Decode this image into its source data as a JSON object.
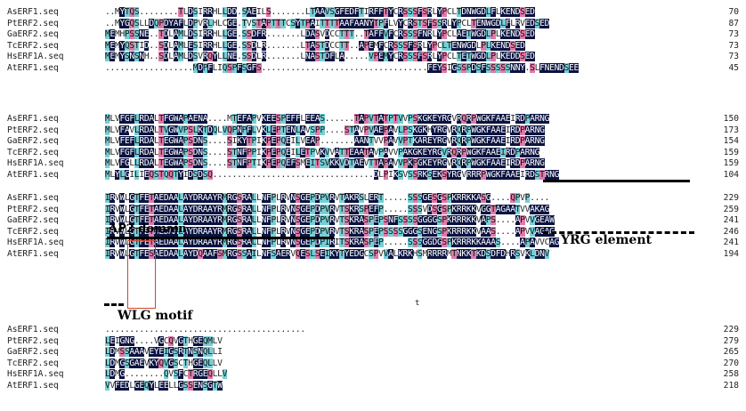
{
  "colors": {
    "identical": "#0b1340",
    "high_similarity": "#e07aa8",
    "low_similarity": "#76cfd6",
    "motif_box": "#d2452f"
  },
  "annotations": {
    "ap2_domain": "AP2 domain",
    "yrg_element": "YRG element",
    "wlg_motif": "WLG motif",
    "t_mark": "t"
  },
  "blocks": [
    {
      "rows": [
        {
          "name": "AsERF1.seq",
          "seq": "..MYTQS........TLDSIRRHLLDD.SAEILS.......LTAAVSGFEDFTIRFFTYCRSSSFSRLYPCLTDNWGDLFLKENDSED",
          "end": "70"
        },
        {
          "name": "PtERF2.seq",
          "seq": "..MYGQSLLDQPDYAFLDPVRLHLCGE.TVSTAPTTTCSYTPAITTTTAAFAANYTPFLVYCRSTSFSSRLYPCLTENWGDLFLRVEDSED",
          "end": "87"
        },
        {
          "name": "GaERF2.seq",
          "seq": "MEMHPSSNE..TDLAMLDSIRRHLLGE.SSDFR.......LDASVDCCTTT..TAFFVFCRSSSFNRLYPCLAETWGDLPLKENDSED",
          "end": "73"
        },
        {
          "name": "TcERF2.seq",
          "seq": "MEMYQSTID..SDLAMLESIRRHLLGE.SSDLR.......LTASTDCCTT..APEMFCRSSSFSRLYPCLTENWGDLPLKENDSED",
          "end": "73"
        },
        {
          "name": "HsERF1A.seq",
          "seq": "MEMYSNSNH..SDLAMLDSVRQYLLNE.SSDLR.......LNASTDFLA.....VPEMYCRSSSFSRLYPCLTETWGDLPLKEDDSED",
          "end": "73"
        },
        {
          "name": "AtERF1.seq",
          "seq": "..................MDPFLIQSPFSGFS..................................FEYSIGSSPDSFSSSSSNNY.SLFNENDSEE",
          "end": "45"
        }
      ]
    },
    {
      "rows": [
        {
          "name": "AsERF1.seq",
          "seq": "MLVFGFLRDALTFGWAPAENA....MTEFAPVKEESPEFFLEEAS......TAPVTATPTVVPSKGKEYRGVRQRPWGKFAAEIRDPARNG",
          "end": "150"
        },
        {
          "name": "PtERF2.seq",
          "seq": "MLVFAVLRDALTVGWVPSLKTDQLVQPNPFLVKLEPTENLAVSPP....STAVPVAEPAVLPSKGKHYRGVRQRPWGKFAAEIRDPARNG",
          "end": "173"
        },
        {
          "name": "GaERF2.seq",
          "seq": "MLVFEFLRDALTEGWAPSDNS....SIKYTPIKPEPQEILVEAP.......AANTVVPAVVPTKAREYRGVRQRPWGKFAAEIRDPARNG",
          "end": "154"
        },
        {
          "name": "TcERF2.seq",
          "seq": "MLVFGFLRDALTEGWAPSDNS....STNFPPIKPEPQEILETPVKVVATTEAATAVPAVVPAKGKEYRGVRQRPWGKFAAEIRDPARNG",
          "end": "159"
        },
        {
          "name": "HsERF1A.seq",
          "seq": "MLVFGLLRDALTEGWAPSDNS....STNFPTIKPEPQEFSMEITSVKKVDTAEVTTAPAVVPKPGKEYRGVRQRPWGKFAAEIRDPARNG",
          "end": "159"
        },
        {
          "name": "AtERF1.seq",
          "seq": "MLYLGILIEQSTQQTYIDSDSQ.................................DLPIKSVSSRKSEKSYRGVRRRPWGKFAAEIRDSTRNG",
          "end": "104"
        }
      ]
    },
    {
      "rows": [
        {
          "name": "AsERF1.seq",
          "seq": "IRVWLGTFETAEDAALAYDRAAYRMRGSRALLNFPLRVNSGEPDPVRVTAKRSLERT.....SSSGESGSPKRRKKASG....QPVP....",
          "end": "229"
        },
        {
          "name": "PtERF2.seq",
          "seq": "IRVWLGTFETAEDAALAYDRAAYRMRGSRALLNFPLRVNSGEPDPVRVTSKRSPEFP.....SSSVDSGSPKRRKKVGGTAGAATVVAKAG",
          "end": "259"
        },
        {
          "name": "GaERF2.seq",
          "seq": "IRVWLGTFETAEDAALAYDRAAYRMRGSRALLNFPLRVNSGEPDPVRVTSKRASPEPSNFSSSSGGGGSPKRRRKKVAPS....APVVGEAW",
          "end": "241"
        },
        {
          "name": "TcERF2.seq",
          "seq": "IRVWLGTFETAEDAALAYDRAAYRMRGSRALLNFPLRVNSGEPDPVRVTSKRASPEPSSSSGGGSENGSPKRRRKKVAAS....APVVAGAG",
          "end": "246"
        },
        {
          "name": "HsERF1A.seq",
          "seq": "IRVWLGTFETAEDAALAYDRAAYRMRGSRALLNFPLRVNSGEPDPIRITSKRASPEP.....SSSGGDGSPKRRRKKAAAS....APAVVCAG",
          "end": "241"
        },
        {
          "name": "AtERF1.seq",
          "seq": "IRVWLGTFESAEDAALAYDQAAFSMRGSSAILNFSAERVQESLSEIKYTYEDGCSPVVALKRKHSMRRRRMTNKKTKDSDFDHRSVKLDNV",
          "end": "194"
        }
      ]
    },
    {
      "rows": [
        {
          "name": "AsERF1.seq",
          "seq": ".........................................",
          "end": "229"
        },
        {
          "name": "PtERF2.seq",
          "seq": "LEIGNG....VGCQVGTHGEQMLV",
          "end": "279"
        },
        {
          "name": "GaERF2.seq",
          "seq": "LDMSSAAAVEYEIGSRTNSNQLLI",
          "end": "265"
        },
        {
          "name": "TcERF2.seq",
          "seq": "LDMGSGAEVKYQVGSCTHGEQLLV",
          "end": "270"
        },
        {
          "name": "HsERF1A.seq",
          "seq": "LDMG........QVSFCTRGEQLLV",
          "end": "258"
        },
        {
          "name": "AtERF1.seq",
          "seq": "VVFEDLGEQYLEELLGSSENSGTW",
          "end": "218"
        }
      ]
    }
  ]
}
